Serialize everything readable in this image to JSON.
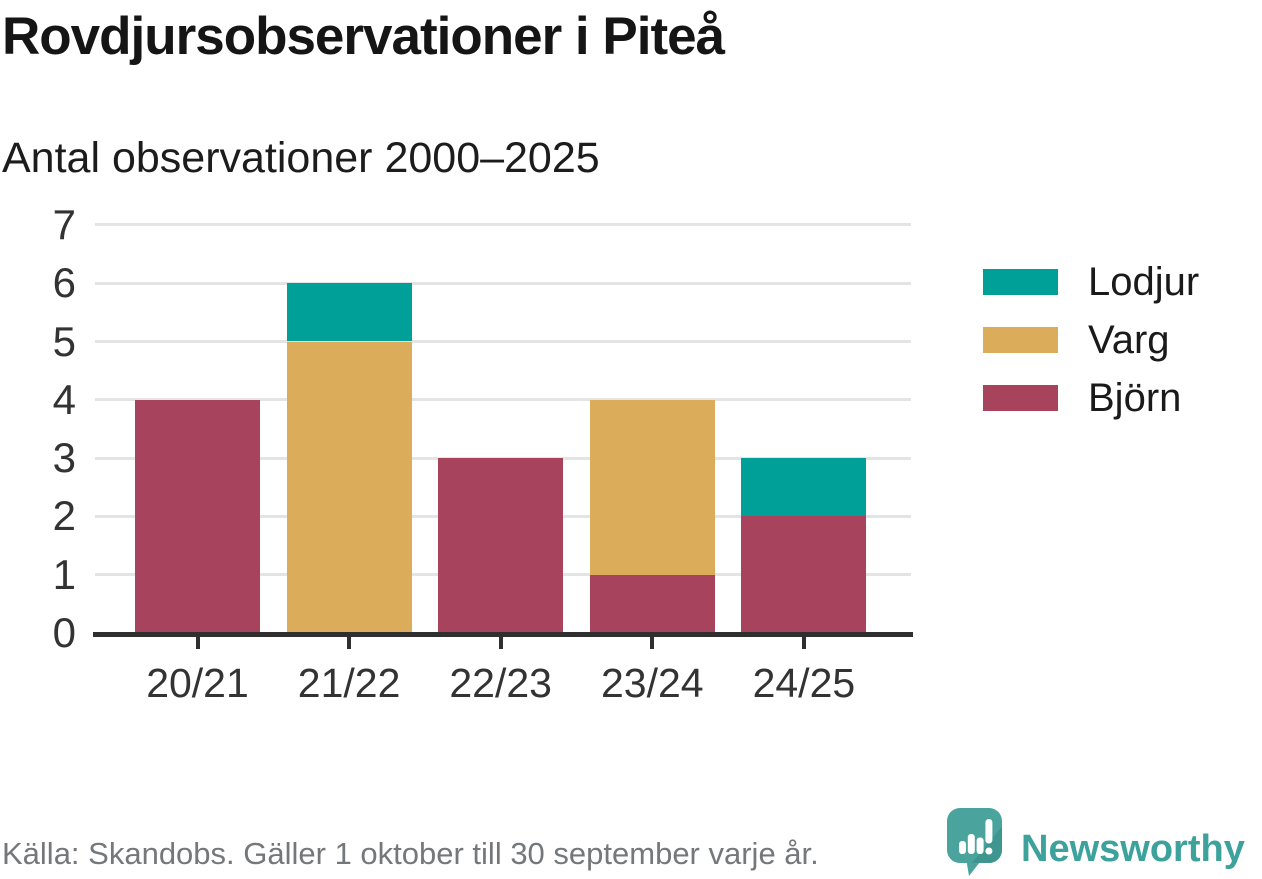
{
  "header": {
    "title": "Rovdjursobservationer i Piteå",
    "subtitle": "Antal observationer 2000–2025"
  },
  "chart_data": {
    "type": "bar",
    "stacked": true,
    "title": "Rovdjursobservationer i Piteå",
    "subtitle": "Antal observationer 2000–2025",
    "categories": [
      "20/21",
      "21/22",
      "22/23",
      "23/24",
      "24/25"
    ],
    "series": [
      {
        "name": "Björn",
        "color": "#a8435d",
        "values": [
          4,
          0,
          3,
          1,
          2
        ]
      },
      {
        "name": "Varg",
        "color": "#dbac5a",
        "values": [
          0,
          5,
          0,
          3,
          0
        ]
      },
      {
        "name": "Lodjur",
        "color": "#00a099",
        "values": [
          0,
          1,
          0,
          0,
          1
        ]
      }
    ],
    "totals": [
      4,
      6,
      3,
      4,
      3
    ],
    "xlabel": "",
    "ylabel": "",
    "ylim": [
      0,
      7
    ],
    "yticks": [
      0,
      1,
      2,
      3,
      4,
      5,
      6,
      7
    ],
    "grid": true,
    "legend_position": "right"
  },
  "legend": [
    {
      "label": "Lodjur",
      "color": "#00a099"
    },
    {
      "label": "Varg",
      "color": "#dbac5a"
    },
    {
      "label": "Björn",
      "color": "#a8435d"
    }
  ],
  "footer": {
    "source": "Källa: Skandobs. Gäller 1 oktober till 30 september varje år.",
    "brand": "Newsworthy"
  },
  "colors": {
    "lodjur_teal": "#00a099",
    "varg_gold": "#dbac5a",
    "bjorn_maroon": "#a8435d",
    "gridline": "#e4e4e4",
    "axis": "#2f2f2f",
    "tick_text": "#333333",
    "source_text": "#75787b",
    "brand_teal": "#3da29b",
    "logo_bubble": "#4aa49d",
    "logo_fold": "#3f968f"
  }
}
